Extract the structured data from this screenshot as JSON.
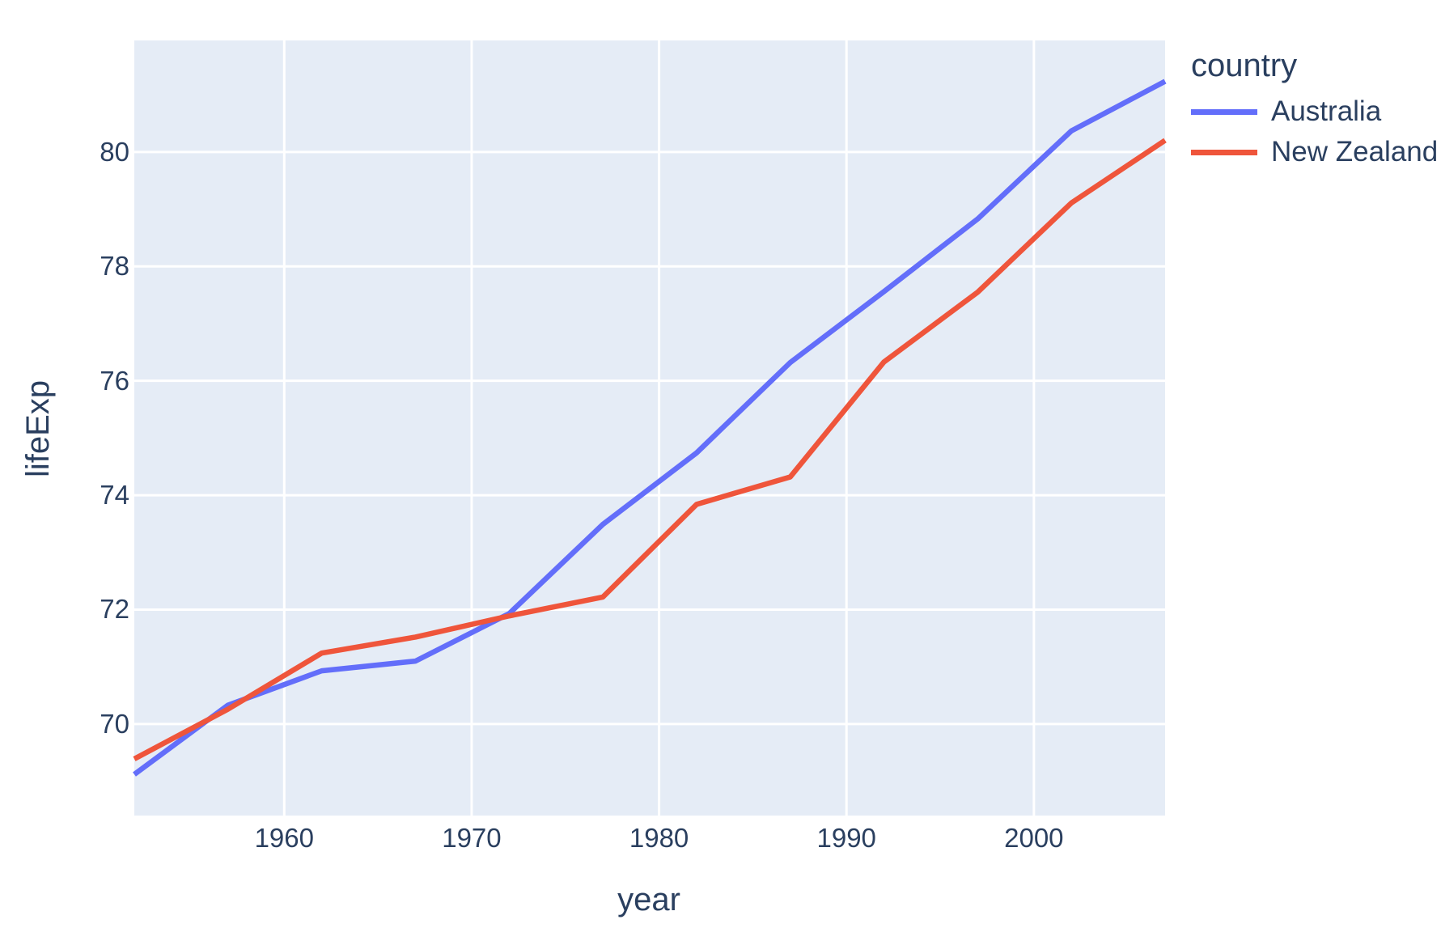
{
  "chart_data": {
    "type": "line",
    "title": "",
    "xlabel": "year",
    "ylabel": "lifeExp",
    "legend_title": "country",
    "x": [
      1952,
      1957,
      1962,
      1967,
      1972,
      1977,
      1982,
      1987,
      1992,
      1997,
      2002,
      2007
    ],
    "series": [
      {
        "name": "Australia",
        "color": "#636efa",
        "values": [
          69.12,
          70.33,
          70.93,
          71.1,
          71.93,
          73.49,
          74.74,
          76.32,
          77.56,
          78.83,
          80.37,
          81.235
        ]
      },
      {
        "name": "New Zealand",
        "color": "#ef553b",
        "values": [
          69.39,
          70.26,
          71.24,
          71.52,
          71.89,
          72.22,
          73.84,
          74.32,
          76.33,
          77.55,
          79.11,
          80.204
        ]
      }
    ],
    "x_ticks": [
      1960,
      1970,
      1980,
      1990,
      2000
    ],
    "y_ticks": [
      70,
      72,
      74,
      76,
      78,
      80
    ],
    "x_range": [
      1952,
      2007
    ],
    "y_range": [
      68.4,
      81.95
    ],
    "grid": true,
    "legend_position": "right",
    "colors": {
      "plot_bg": "#e5ecf6",
      "paper_bg": "#ffffff",
      "grid": "#ffffff",
      "text": "#2a3f5f"
    }
  }
}
